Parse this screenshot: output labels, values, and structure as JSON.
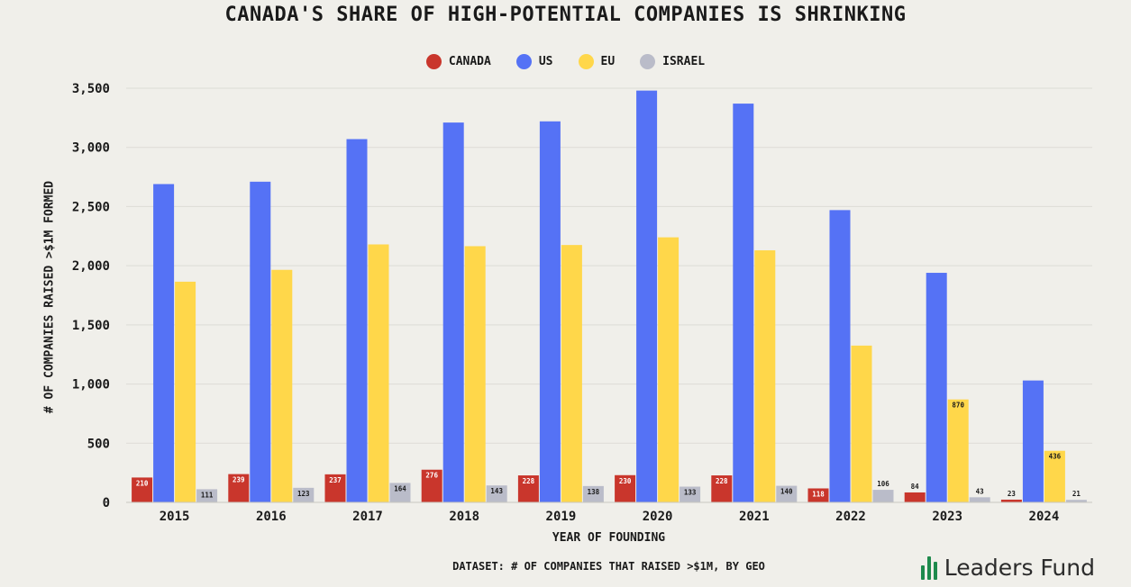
{
  "colors": {
    "canada": "#c9362c",
    "us": "#5572f5",
    "eu": "#ffd74a",
    "israel": "#babcc9",
    "background": "#f0efea",
    "brand": "#1e8a4c"
  },
  "footer": {
    "dataset_note": "DATASET: # OF COMPANIES THAT RAISED >$1M, BY GEO",
    "brand_name": "Leaders Fund",
    "brand_icon": "bar-chart-icon"
  },
  "chart_data": {
    "type": "bar",
    "title": "CANADA'S SHARE OF HIGH-POTENTIAL COMPANIES IS SHRINKING",
    "xlabel": "YEAR OF FOUNDING",
    "ylabel": "# OF COMPANIES RAISED >$1M FORMED",
    "ylim": [
      0,
      3500
    ],
    "yticks": [
      0,
      500,
      1000,
      1500,
      2000,
      2500,
      3000,
      3500
    ],
    "ytick_labels": [
      "0",
      "500",
      "1,000",
      "1,500",
      "2,000",
      "2,500",
      "3,000",
      "3,500"
    ],
    "grid": true,
    "legend_position": "top-center",
    "categories": [
      "2015",
      "2016",
      "2017",
      "2018",
      "2019",
      "2020",
      "2021",
      "2022",
      "2023",
      "2024"
    ],
    "series": [
      {
        "name": "CANADA",
        "key": "canada",
        "values": [
          210,
          239,
          237,
          276,
          228,
          230,
          228,
          118,
          84,
          23
        ],
        "labels": [
          "210",
          "239",
          "237",
          "276",
          "228",
          "230",
          "228",
          "118",
          "84",
          "23"
        ]
      },
      {
        "name": "US",
        "key": "us",
        "values": [
          2690,
          2710,
          3070,
          3210,
          3220,
          3480,
          3370,
          2470,
          1940,
          1030
        ],
        "labels": [
          "",
          "",
          "",
          "",
          "",
          "",
          "",
          "",
          "",
          ""
        ]
      },
      {
        "name": "EU",
        "key": "eu",
        "values": [
          1865,
          1965,
          2180,
          2165,
          2175,
          2240,
          2130,
          1325,
          870,
          436
        ],
        "labels": [
          "",
          "",
          "",
          "",
          "",
          "",
          "",
          "",
          "870",
          "436"
        ]
      },
      {
        "name": "ISRAEL",
        "key": "israel",
        "values": [
          111,
          123,
          164,
          143,
          138,
          133,
          140,
          106,
          43,
          21
        ],
        "labels": [
          "111",
          "123",
          "164",
          "143",
          "138",
          "133",
          "140",
          "106",
          "43",
          "21"
        ]
      }
    ]
  }
}
